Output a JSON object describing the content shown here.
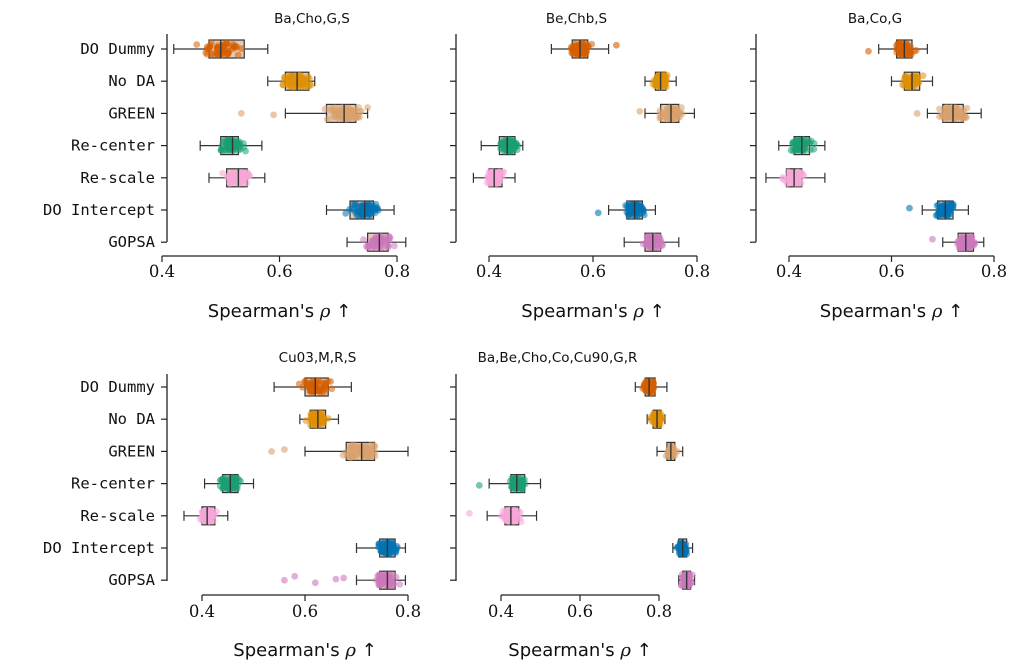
{
  "colors": {
    "DO Dummy": "#d55e00",
    "No DA": "#de8f05",
    "GREEN": "#d9a06c",
    "Re-center": "#1a9e74",
    "Re-scale": "#f8a6d9",
    "DO Intercept": "#0173b2",
    "GOPSA": "#cc78bc",
    "box_fill": "#dcb89c",
    "box_edge": "#333333"
  },
  "chart_data": [
    {
      "type": "box",
      "title": "Ba,Cho,G,S",
      "xlabel": "Spearman's ρ ↑",
      "xlim": [
        0.4,
        0.8
      ],
      "xticks": [
        "0.4",
        "0.6",
        "0.8"
      ],
      "show_method_labels": true,
      "categories": [
        "DO Dummy",
        "No DA",
        "GREEN",
        "Re-center",
        "Re-scale",
        "DO Intercept",
        "GOPSA"
      ],
      "series": [
        {
          "name": "DO Dummy",
          "q1": 0.48,
          "median": 0.5,
          "q3": 0.54,
          "whisker_low": 0.42,
          "whisker_high": 0.58,
          "outliers": []
        },
        {
          "name": "No DA",
          "q1": 0.61,
          "median": 0.63,
          "q3": 0.65,
          "whisker_low": 0.58,
          "whisker_high": 0.66,
          "outliers": []
        },
        {
          "name": "GREEN",
          "q1": 0.68,
          "median": 0.71,
          "q3": 0.73,
          "whisker_low": 0.61,
          "whisker_high": 0.75,
          "outliers": [
            0.535,
            0.59
          ]
        },
        {
          "name": "Re-center",
          "q1": 0.5,
          "median": 0.52,
          "q3": 0.53,
          "whisker_low": 0.465,
          "whisker_high": 0.57,
          "outliers": []
        },
        {
          "name": "Re-scale",
          "q1": 0.51,
          "median": 0.53,
          "q3": 0.545,
          "whisker_low": 0.48,
          "whisker_high": 0.575,
          "outliers": []
        },
        {
          "name": "DO Intercept",
          "q1": 0.72,
          "median": 0.745,
          "q3": 0.76,
          "whisker_low": 0.68,
          "whisker_high": 0.795,
          "outliers": []
        },
        {
          "name": "GOPSA",
          "q1": 0.75,
          "median": 0.77,
          "q3": 0.785,
          "whisker_low": 0.715,
          "whisker_high": 0.815,
          "outliers": []
        }
      ]
    },
    {
      "type": "box",
      "title": "Be,Chb,S",
      "xlabel": "Spearman's ρ ↑",
      "xlim": [
        0.4,
        0.8
      ],
      "xticks": [
        "0.4",
        "0.6",
        "0.8"
      ],
      "show_method_labels": false,
      "categories": [
        "DO Dummy",
        "No DA",
        "GREEN",
        "Re-center",
        "Re-scale",
        "DO Intercept",
        "GOPSA"
      ],
      "series": [
        {
          "name": "DO Dummy",
          "q1": 0.56,
          "median": 0.575,
          "q3": 0.59,
          "whisker_low": 0.52,
          "whisker_high": 0.63,
          "outliers": [
            0.645
          ]
        },
        {
          "name": "No DA",
          "q1": 0.72,
          "median": 0.73,
          "q3": 0.74,
          "whisker_low": 0.7,
          "whisker_high": 0.76,
          "outliers": []
        },
        {
          "name": "GREEN",
          "q1": 0.73,
          "median": 0.75,
          "q3": 0.765,
          "whisker_low": 0.7,
          "whisker_high": 0.795,
          "outliers": [
            0.69
          ]
        },
        {
          "name": "Re-center",
          "q1": 0.42,
          "median": 0.435,
          "q3": 0.45,
          "whisker_low": 0.385,
          "whisker_high": 0.465,
          "outliers": []
        },
        {
          "name": "Re-scale",
          "q1": 0.4,
          "median": 0.41,
          "q3": 0.425,
          "whisker_low": 0.37,
          "whisker_high": 0.45,
          "outliers": []
        },
        {
          "name": "DO Intercept",
          "q1": 0.665,
          "median": 0.68,
          "q3": 0.695,
          "whisker_low": 0.63,
          "whisker_high": 0.72,
          "outliers": [
            0.61
          ]
        },
        {
          "name": "GOPSA",
          "q1": 0.7,
          "median": 0.715,
          "q3": 0.73,
          "whisker_low": 0.66,
          "whisker_high": 0.765,
          "outliers": []
        }
      ]
    },
    {
      "type": "box",
      "title": "Ba,Co,G",
      "xlabel": "Spearman's ρ ↑",
      "xlim": [
        0.4,
        0.8
      ],
      "xticks": [
        "0.4",
        "0.6",
        "0.8"
      ],
      "show_method_labels": false,
      "categories": [
        "DO Dummy",
        "No DA",
        "GREEN",
        "Re-center",
        "Re-scale",
        "DO Intercept",
        "GOPSA"
      ],
      "series": [
        {
          "name": "DO Dummy",
          "q1": 0.61,
          "median": 0.625,
          "q3": 0.64,
          "whisker_low": 0.575,
          "whisker_high": 0.67,
          "outliers": [
            0.555
          ]
        },
        {
          "name": "No DA",
          "q1": 0.625,
          "median": 0.64,
          "q3": 0.655,
          "whisker_low": 0.6,
          "whisker_high": 0.68,
          "outliers": []
        },
        {
          "name": "GREEN",
          "q1": 0.7,
          "median": 0.72,
          "q3": 0.74,
          "whisker_low": 0.67,
          "whisker_high": 0.775,
          "outliers": [
            0.65
          ]
        },
        {
          "name": "Re-center",
          "q1": 0.41,
          "median": 0.425,
          "q3": 0.44,
          "whisker_low": 0.38,
          "whisker_high": 0.47,
          "outliers": []
        },
        {
          "name": "Re-scale",
          "q1": 0.395,
          "median": 0.41,
          "q3": 0.425,
          "whisker_low": 0.355,
          "whisker_high": 0.47,
          "outliers": []
        },
        {
          "name": "DO Intercept",
          "q1": 0.69,
          "median": 0.705,
          "q3": 0.72,
          "whisker_low": 0.66,
          "whisker_high": 0.75,
          "outliers": [
            0.635
          ]
        },
        {
          "name": "GOPSA",
          "q1": 0.73,
          "median": 0.745,
          "q3": 0.76,
          "whisker_low": 0.7,
          "whisker_high": 0.78,
          "outliers": [
            0.68
          ]
        }
      ]
    },
    {
      "type": "box",
      "title": "Cu03,M,R,S",
      "xlabel": "Spearman's ρ ↑",
      "xlim": [
        0.4,
        0.8
      ],
      "xticks": [
        "0.4",
        "0.6",
        "0.8"
      ],
      "show_method_labels": true,
      "categories": [
        "DO Dummy",
        "No DA",
        "GREEN",
        "Re-center",
        "Re-scale",
        "DO Intercept",
        "GOPSA"
      ],
      "series": [
        {
          "name": "DO Dummy",
          "q1": 0.6,
          "median": 0.62,
          "q3": 0.645,
          "whisker_low": 0.54,
          "whisker_high": 0.69,
          "outliers": []
        },
        {
          "name": "No DA",
          "q1": 0.61,
          "median": 0.625,
          "q3": 0.64,
          "whisker_low": 0.59,
          "whisker_high": 0.665,
          "outliers": []
        },
        {
          "name": "GREEN",
          "q1": 0.68,
          "median": 0.71,
          "q3": 0.735,
          "whisker_low": 0.6,
          "whisker_high": 0.8,
          "outliers": [
            0.535,
            0.56
          ]
        },
        {
          "name": "Re-center",
          "q1": 0.44,
          "median": 0.455,
          "q3": 0.47,
          "whisker_low": 0.405,
          "whisker_high": 0.5,
          "outliers": []
        },
        {
          "name": "Re-scale",
          "q1": 0.4,
          "median": 0.41,
          "q3": 0.425,
          "whisker_low": 0.365,
          "whisker_high": 0.45,
          "outliers": []
        },
        {
          "name": "DO Intercept",
          "q1": 0.745,
          "median": 0.76,
          "q3": 0.775,
          "whisker_low": 0.7,
          "whisker_high": 0.795,
          "outliers": []
        },
        {
          "name": "GOPSA",
          "q1": 0.745,
          "median": 0.76,
          "q3": 0.775,
          "whisker_low": 0.7,
          "whisker_high": 0.795,
          "outliers": [
            0.56,
            0.58,
            0.62,
            0.66,
            0.675
          ]
        }
      ]
    },
    {
      "type": "box",
      "title": "Ba,Be,Cho,Co,Cu90,G,R",
      "xlabel": "Spearman's ρ ↑",
      "xlim": [
        0.4,
        0.8
      ],
      "xticks": [
        "0.4",
        "0.6",
        "0.8"
      ],
      "show_method_labels": false,
      "categories": [
        "DO Dummy",
        "No DA",
        "GREEN",
        "Re-center",
        "Re-scale",
        "DO Intercept",
        "GOPSA"
      ],
      "series": [
        {
          "name": "DO Dummy",
          "q1": 0.765,
          "median": 0.775,
          "q3": 0.79,
          "whisker_low": 0.74,
          "whisker_high": 0.82,
          "outliers": []
        },
        {
          "name": "No DA",
          "q1": 0.785,
          "median": 0.795,
          "q3": 0.805,
          "whisker_low": 0.77,
          "whisker_high": 0.815,
          "outliers": []
        },
        {
          "name": "GREEN",
          "q1": 0.82,
          "median": 0.83,
          "q3": 0.84,
          "whisker_low": 0.795,
          "whisker_high": 0.86,
          "outliers": []
        },
        {
          "name": "Re-center",
          "q1": 0.425,
          "median": 0.44,
          "q3": 0.46,
          "whisker_low": 0.37,
          "whisker_high": 0.5,
          "outliers": [
            0.345
          ]
        },
        {
          "name": "Re-scale",
          "q1": 0.41,
          "median": 0.425,
          "q3": 0.445,
          "whisker_low": 0.365,
          "whisker_high": 0.49,
          "outliers": [
            0.32
          ]
        },
        {
          "name": "DO Intercept",
          "q1": 0.85,
          "median": 0.86,
          "q3": 0.87,
          "whisker_low": 0.835,
          "whisker_high": 0.885,
          "outliers": []
        },
        {
          "name": "GOPSA",
          "q1": 0.86,
          "median": 0.87,
          "q3": 0.88,
          "whisker_low": 0.85,
          "whisker_high": 0.89,
          "outliers": []
        }
      ]
    }
  ]
}
